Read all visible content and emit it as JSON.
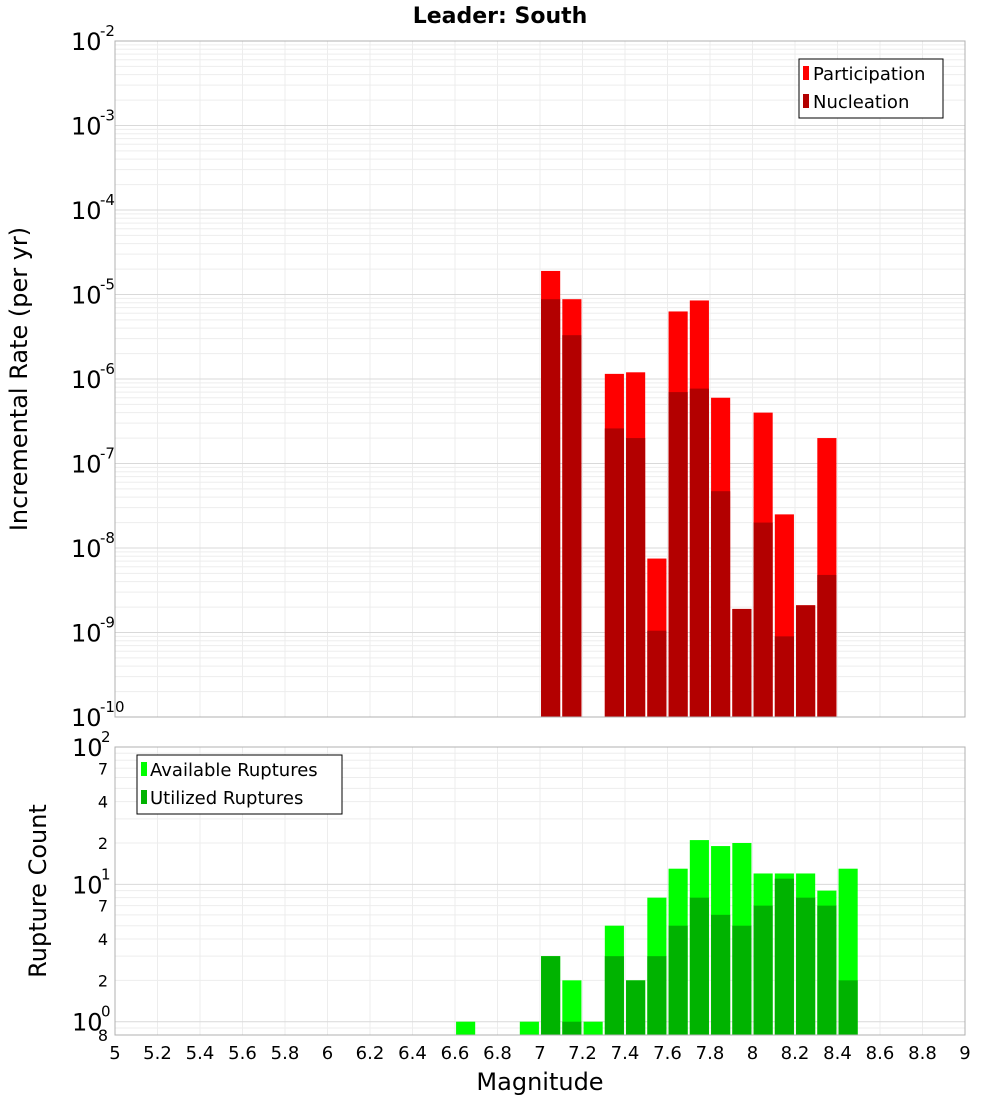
{
  "chart_data": [
    {
      "type": "bar",
      "title": "Leader: South",
      "xlabel": "",
      "ylabel": "Incremental Rate (per yr)",
      "yscale": "log",
      "xlim": [
        5,
        9
      ],
      "ylim": [
        1e-10,
        0.01
      ],
      "grid": true,
      "legend_position": "top-right",
      "bar_width": 0.09,
      "y_tick_bases": [
        "10",
        "10",
        "10",
        "10",
        "10",
        "10",
        "10",
        "10",
        "10"
      ],
      "y_tick_exponents": [
        "-10",
        "-9",
        "-8",
        "-7",
        "-6",
        "-5",
        "-4",
        "-3",
        "-2"
      ],
      "y_tick_values": [
        1e-10,
        1e-09,
        1e-08,
        1e-07,
        1e-06,
        1e-05,
        0.0001,
        0.001,
        0.01
      ],
      "series": [
        {
          "name": "Participation",
          "color": "#ff0000",
          "x": [
            7.05,
            7.15,
            7.35,
            7.45,
            7.55,
            7.65,
            7.75,
            7.85,
            7.95,
            8.05,
            8.15,
            8.25,
            8.35
          ],
          "values": [
            1.9e-05,
            8.8e-06,
            1.15e-06,
            1.2e-06,
            7.5e-09,
            6.3e-06,
            8.5e-06,
            6e-07,
            1.9e-09,
            4e-07,
            2.5e-08,
            2.1e-09,
            2e-07
          ]
        },
        {
          "name": "Nucleation",
          "color": "#b30000",
          "x": [
            7.05,
            7.15,
            7.35,
            7.45,
            7.55,
            7.65,
            7.75,
            7.85,
            7.95,
            8.05,
            8.15,
            8.25,
            8.35
          ],
          "values": [
            8.8e-06,
            3.3e-06,
            2.6e-07,
            2e-07,
            1.05e-09,
            7e-07,
            7.7e-07,
            4.7e-08,
            1.9e-09,
            2e-08,
            9e-10,
            2.1e-09,
            4.8e-09
          ]
        }
      ]
    },
    {
      "type": "bar",
      "title": "",
      "xlabel": "Magnitude",
      "ylabel": "Rupture Count",
      "yscale": "log",
      "xlim": [
        5,
        9
      ],
      "ylim": [
        0.8,
        100
      ],
      "grid": true,
      "legend_position": "top-left",
      "bar_width": 0.09,
      "x_ticks": [
        "5",
        "5.2",
        "5.4",
        "5.6",
        "5.8",
        "6",
        "6.2",
        "6.4",
        "6.6",
        "6.8",
        "7",
        "7.2",
        "7.4",
        "7.6",
        "7.8",
        "8",
        "8.2",
        "8.4",
        "8.6",
        "8.8",
        "9"
      ],
      "y_minor_tick_labels": [
        "8",
        "2",
        "4",
        "7",
        "2",
        "4",
        "7"
      ],
      "y_minor_tick_values": [
        0.8,
        2,
        4,
        7,
        20,
        40,
        70
      ],
      "y_decade_bases": [
        "10",
        "10",
        "10"
      ],
      "y_decade_exponents": [
        "0",
        "1",
        "2"
      ],
      "y_decade_values": [
        1,
        10,
        100
      ],
      "series": [
        {
          "name": "Available Ruptures",
          "color": "#00ff00",
          "x": [
            6.65,
            6.95,
            7.05,
            7.15,
            7.25,
            7.35,
            7.45,
            7.55,
            7.65,
            7.75,
            7.85,
            7.95,
            8.05,
            8.15,
            8.25,
            8.35,
            8.45
          ],
          "values": [
            1,
            1,
            3,
            2,
            1,
            5,
            2,
            8,
            13,
            21,
            19,
            20,
            12,
            12,
            12,
            9,
            13
          ]
        },
        {
          "name": "Utilized Ruptures",
          "color": "#00b300",
          "x": [
            6.65,
            6.95,
            7.05,
            7.15,
            7.25,
            7.35,
            7.45,
            7.55,
            7.65,
            7.75,
            7.85,
            7.95,
            8.05,
            8.15,
            8.25,
            8.35,
            8.45
          ],
          "values": [
            0,
            0,
            3,
            1,
            0,
            3,
            2,
            3,
            5,
            8,
            6,
            5,
            7,
            11,
            8,
            7,
            2
          ]
        }
      ]
    }
  ]
}
